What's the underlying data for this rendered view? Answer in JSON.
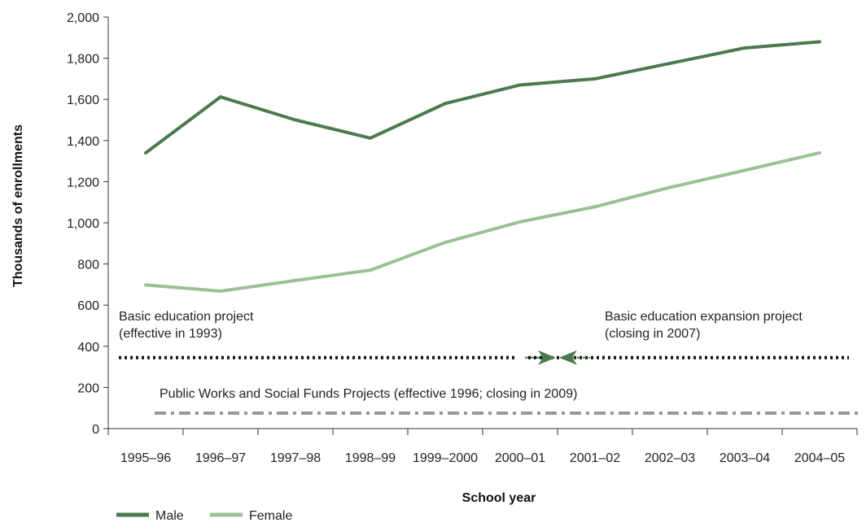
{
  "chart_data": {
    "type": "line",
    "xlabel": "School year",
    "ylabel": "Thousands of enrollments",
    "ylim": [
      0,
      2000
    ],
    "yticks": [
      0,
      200,
      400,
      600,
      800,
      1000,
      1200,
      1400,
      1600,
      1800,
      2000
    ],
    "ytick_labels": [
      "0",
      "200",
      "400",
      "600",
      "800",
      "1,000",
      "1,200",
      "1,400",
      "1,600",
      "1,800",
      "2,000"
    ],
    "categories": [
      "1995–96",
      "1996–97",
      "1997–98",
      "1998–99",
      "1999–2000",
      "2000–01",
      "2001–02",
      "2002–03",
      "2003–04",
      "2004–05"
    ],
    "series": [
      {
        "name": "Male",
        "color": "#4a7a4e",
        "values": [
          1340,
          1612,
          1500,
          1412,
          1580,
          1670,
          1700,
          1775,
          1850,
          1880
        ]
      },
      {
        "name": "Female",
        "color": "#9cc096",
        "values": [
          698,
          668,
          720,
          770,
          905,
          1005,
          1078,
          1172,
          1255,
          1340
        ]
      }
    ],
    "legend_position": "bottom-left",
    "grid": false,
    "annotations": [
      {
        "id": "basic-project",
        "lines": [
          "Basic education project",
          "(effective in 1993)"
        ],
        "y": 345,
        "x_start": "1995–96",
        "x_end": "2000–01",
        "style": "dotted",
        "color": "#111111"
      },
      {
        "id": "expansion-project",
        "lines": [
          "Basic education expansion project",
          "(closing in 2007)"
        ],
        "y": 345,
        "x_start": "2001–02",
        "x_end": "2004–05",
        "style": "dotted",
        "color": "#111111"
      },
      {
        "id": "public-works",
        "lines": [
          "Public Works and Social Funds Projects  (effective 1996; closing in 2009)"
        ],
        "y": 75,
        "x_start": "1996–97",
        "x_end": "2004–05",
        "style": "dash-dot",
        "color": "#999999"
      }
    ],
    "arrow_color": "#4a7a4e"
  }
}
